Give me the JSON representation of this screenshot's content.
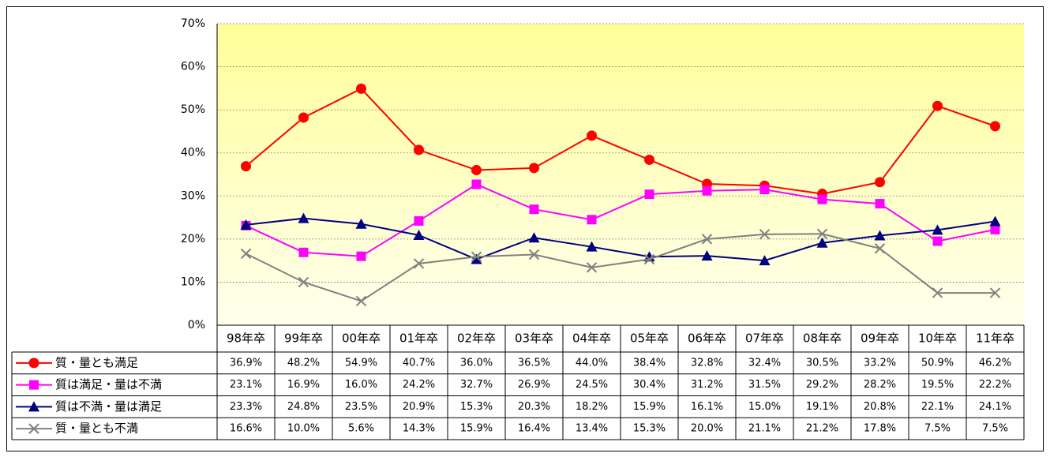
{
  "chart_data": {
    "type": "line",
    "categories": [
      "98年卒",
      "99年卒",
      "00年卒",
      "01年卒",
      "02年卒",
      "03年卒",
      "04年卒",
      "05年卒",
      "06年卒",
      "07年卒",
      "08年卒",
      "09年卒",
      "10年卒",
      "11年卒"
    ],
    "series": [
      {
        "name": "質・量とも満足",
        "color": "#ff0000",
        "marker": "circle",
        "values": [
          36.9,
          48.2,
          54.9,
          40.7,
          36.0,
          36.5,
          44.0,
          38.4,
          32.8,
          32.4,
          30.5,
          33.2,
          50.9,
          46.2
        ],
        "value_labels": [
          "36.9%",
          "48.2%",
          "54.9%",
          "40.7%",
          "36.0%",
          "36.5%",
          "44.0%",
          "38.4%",
          "32.8%",
          "32.4%",
          "30.5%",
          "33.2%",
          "50.9%",
          "46.2%"
        ]
      },
      {
        "name": "質は満足・量は不満",
        "color": "#ff00ff",
        "marker": "square",
        "values": [
          23.1,
          16.9,
          16.0,
          24.2,
          32.7,
          26.9,
          24.5,
          30.4,
          31.2,
          31.5,
          29.2,
          28.2,
          19.5,
          22.2
        ],
        "value_labels": [
          "23.1%",
          "16.9%",
          "16.0%",
          "24.2%",
          "32.7%",
          "26.9%",
          "24.5%",
          "30.4%",
          "31.2%",
          "31.5%",
          "29.2%",
          "28.2%",
          "19.5%",
          "22.2%"
        ]
      },
      {
        "name": "質は不満・量は満足",
        "color": "#000080",
        "marker": "triangle",
        "values": [
          23.3,
          24.8,
          23.5,
          20.9,
          15.3,
          20.3,
          18.2,
          15.9,
          16.1,
          15.0,
          19.1,
          20.8,
          22.1,
          24.1
        ],
        "value_labels": [
          "23.3%",
          "24.8%",
          "23.5%",
          "20.9%",
          "15.3%",
          "20.3%",
          "18.2%",
          "15.9%",
          "16.1%",
          "15.0%",
          "19.1%",
          "20.8%",
          "22.1%",
          "24.1%"
        ]
      },
      {
        "name": "質・量とも不満",
        "color": "#808080",
        "marker": "x",
        "values": [
          16.6,
          10.0,
          5.6,
          14.3,
          15.9,
          16.4,
          13.4,
          15.3,
          20.0,
          21.1,
          21.2,
          17.8,
          7.5,
          7.5
        ],
        "value_labels": [
          "16.6%",
          "10.0%",
          "5.6%",
          "14.3%",
          "15.9%",
          "16.4%",
          "13.4%",
          "15.3%",
          "20.0%",
          "21.1%",
          "21.2%",
          "17.8%",
          "7.5%",
          "7.5%"
        ]
      }
    ],
    "ylim": [
      0,
      70
    ],
    "yticks": [
      {
        "value": 0,
        "label": "0%"
      },
      {
        "value": 10,
        "label": "10%"
      },
      {
        "value": 20,
        "label": "20%"
      },
      {
        "value": 30,
        "label": "30%"
      },
      {
        "value": 40,
        "label": "40%"
      },
      {
        "value": 50,
        "label": "50%"
      },
      {
        "value": 60,
        "label": "60%"
      },
      {
        "value": 70,
        "label": "70%"
      }
    ],
    "grid": true
  }
}
